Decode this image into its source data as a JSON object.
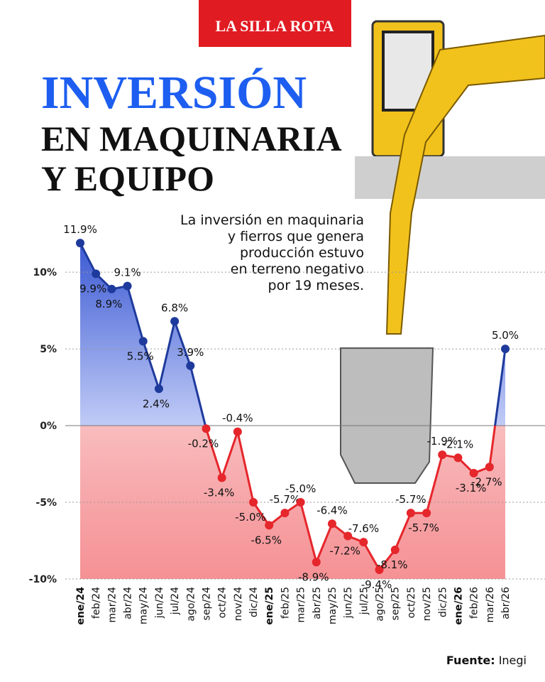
{
  "header": {
    "logo": "LA SILLA ROTA",
    "title": [
      "INVERSIÓN",
      "EN MAQUINARIA",
      "Y EQUIPO"
    ]
  },
  "chart_data": {
    "type": "line",
    "subtitle": [
      "La inversión en maquinaria",
      "y fierros que genera",
      "producción estuvo",
      "en terreno negativo",
      "por 19 meses."
    ],
    "categories": [
      "ene/24",
      "feb/24",
      "mar/24",
      "abr/24",
      "may/24",
      "jun/24",
      "jul/24",
      "ago/24",
      "sep/24",
      "oct/24",
      "nov/24",
      "dic/24",
      "ene/25",
      "feb/25",
      "mar/25",
      "abr/25",
      "may/25",
      "jun/25",
      "jul/25",
      "ago/25",
      "sep/25",
      "oct/25",
      "nov/25",
      "dic/25",
      "ene/26",
      "feb/26",
      "mar/26",
      "abr/26"
    ],
    "values": [
      11.9,
      9.9,
      8.9,
      9.1,
      5.5,
      2.4,
      6.8,
      3.9,
      -0.2,
      -3.4,
      -0.4,
      -5.0,
      -6.5,
      -5.7,
      -5.0,
      -8.9,
      -6.4,
      -7.2,
      -7.6,
      -9.4,
      -8.1,
      -5.7,
      -5.7,
      -1.9,
      -2.1,
      -3.1,
      -2.7,
      5.0
    ],
    "value_labels": [
      "11.9%",
      "9.9%",
      "8.9%",
      "9.1%",
      "5.5%",
      "2.4%",
      "6.8%",
      "3.9%",
      "-0.2%",
      "-3.4%",
      "-0.4%",
      "-5.0%",
      "-6.5%",
      "-5.7%",
      "-5.0%",
      "-8.9%",
      "-6.4%",
      "-7.2%",
      "-7.6%",
      "-9.4%",
      "-8.1%",
      "-5.7%",
      "-5.7%",
      "-1.9%",
      "-2.1%",
      "-3.1%",
      "-2.7%",
      "5.0%"
    ],
    "positive_color": "#1e3a9c",
    "negative_color": "#e5262b",
    "ylim": [
      -10,
      12
    ],
    "yticks": [
      {
        "value": 10,
        "label": "10%"
      },
      {
        "value": 5,
        "label": "5%"
      },
      {
        "value": 0,
        "label": "0%"
      },
      {
        "value": -5,
        "label": "-5%"
      },
      {
        "value": -10,
        "label": "-10%"
      }
    ],
    "grid": true,
    "source_label": "Fuente:",
    "source": "Inegi"
  }
}
